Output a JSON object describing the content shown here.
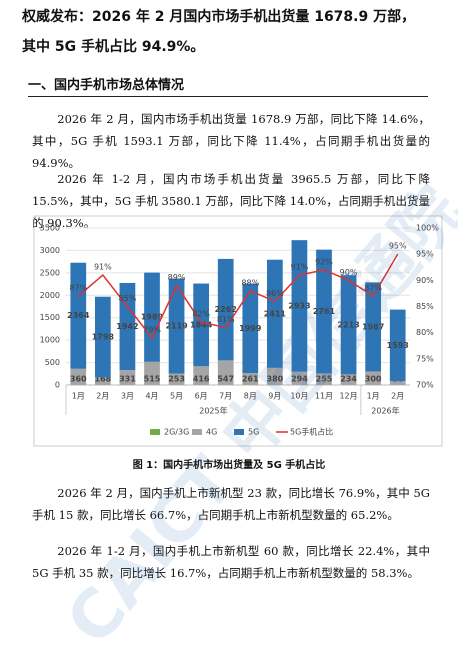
{
  "header": {
    "title_lines": [
      "权威发布：2026 年 2 月国内市场手机出货量 1678.9 万部，",
      "其中 5G 手机占比 94.9%。"
    ]
  },
  "section_heading": "一、国内手机市场总体情况",
  "paragraphs_top": [
    "2026 年 2 月，国内市场手机出货量 1678.9 万部，同比下降 14.6%，其中，5G 手机 1593.1 万部，同比下降 11.4%，占同期手机出货量的 94.9%。",
    "2026 年 1-2 月，国内市场手机出货量 3965.5 万部，同比下降 15.5%，其中，5G 手机 3580.1 万部，同比下降 14.0%，占同期手机出货量的 90.3%。"
  ],
  "figure_caption": "图 1：国内手机市场出货量及 5G 手机占比",
  "paragraphs_bottom": [
    "2026 年 2 月，国内手机上市新机型 23 款，同比增长 76.9%，其中 5G 手机 15 款，同比增长 66.7%，占同期手机上市新机型数量的 65.2%。",
    "2026 年 1-2 月，国内手机上市新机型 60 款，同比增长 22.4%，其中 5G 手机 35 款，同比增长 16.7%，占同期手机上市新机型数量的 58.3%。"
  ],
  "watermark": "CAICT 中国信通院",
  "chart_data": {
    "type": "bar",
    "stacked": true,
    "categories": [
      "1月",
      "2月",
      "3月",
      "4月",
      "5月",
      "6月",
      "7月",
      "8月",
      "9月",
      "10月",
      "11月",
      "12月",
      "1月",
      "2月"
    ],
    "category_groups": [
      "2025年",
      "2026年"
    ],
    "series": [
      {
        "name": "2G/3G",
        "color": "#70ad47",
        "values": [
          2,
          2,
          2,
          2,
          2,
          2,
          2,
          2,
          2,
          2,
          2,
          2,
          2,
          2
        ]
      },
      {
        "name": "4G",
        "color": "#a5a5a5",
        "values": [
          360,
          168,
          331,
          515,
          253,
          416,
          547,
          261,
          380,
          294,
          255,
          234,
          300,
          86
        ]
      },
      {
        "name": "5G",
        "color": "#2e75b6",
        "values": [
          2364,
          1798,
          1942,
          1989,
          2119,
          1844,
          2262,
          1999,
          2411,
          2933,
          2761,
          2213,
          1987,
          1593
        ]
      },
      {
        "name": "5G手机占比",
        "color": "#e03030",
        "type": "line",
        "axis": "y2",
        "values": [
          87,
          91,
          85,
          79,
          89,
          82,
          81,
          88,
          86,
          91,
          92,
          90,
          87,
          95
        ],
        "value_labels": [
          "87%",
          "91%",
          "85%",
          "79%",
          "89%",
          "82%",
          "81%",
          "88%",
          "86%",
          "91%",
          "92%",
          "90%",
          "87%",
          "95%"
        ]
      }
    ],
    "ylim": [
      0,
      3500
    ],
    "yticks": [
      0,
      500,
      1000,
      1500,
      2000,
      2500,
      3000,
      3500
    ],
    "y2lim": [
      70,
      100
    ],
    "y2ticks": [
      {
        "value": 70,
        "label": "70%"
      },
      {
        "value": 75,
        "label": "75%"
      },
      {
        "value": 80,
        "label": "80%"
      },
      {
        "value": 85,
        "label": "85%"
      },
      {
        "value": 90,
        "label": "90%"
      },
      {
        "value": 95,
        "label": "95%"
      },
      {
        "value": 100,
        "label": "100%"
      }
    ],
    "grid": true,
    "legend": "bottom"
  }
}
